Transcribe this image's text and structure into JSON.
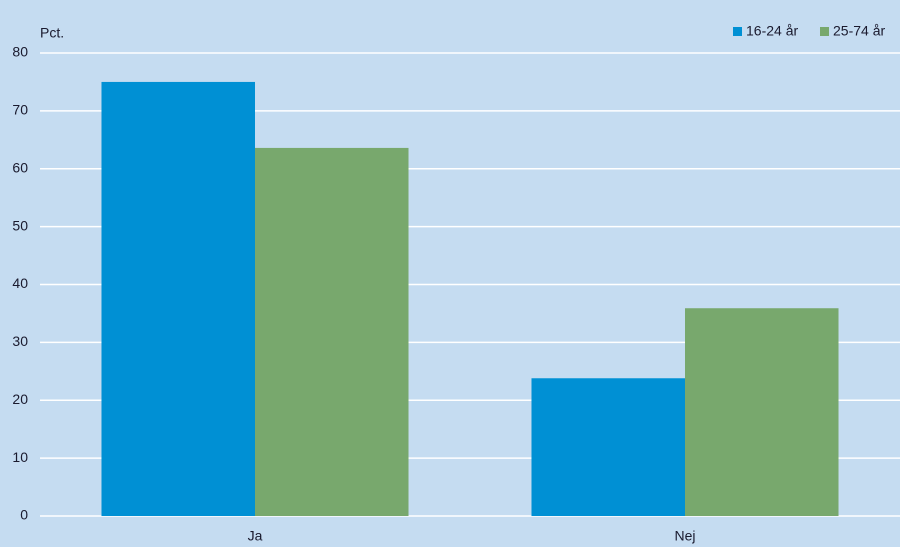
{
  "chart_data": {
    "type": "bar",
    "y_label": "Pct.",
    "categories": [
      "Ja",
      "Nej"
    ],
    "series": [
      {
        "name": "16-24 år",
        "color": "#0090d4",
        "values": [
          75.0,
          23.8
        ]
      },
      {
        "name": "25-74 år",
        "color": "#78a86d",
        "values": [
          63.6,
          35.9
        ]
      }
    ],
    "ylim": [
      0,
      80
    ],
    "yticks": [
      0,
      10,
      20,
      30,
      40,
      50,
      60,
      70,
      80
    ],
    "grid": true,
    "legend": "top-right"
  }
}
